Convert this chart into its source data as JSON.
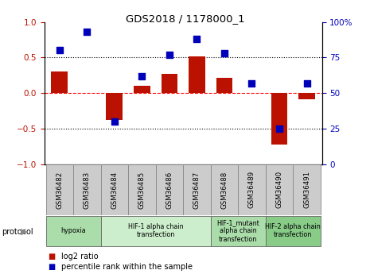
{
  "title": "GDS2018 / 1178000_1",
  "samples": [
    "GSM36482",
    "GSM36483",
    "GSM36484",
    "GSM36485",
    "GSM36486",
    "GSM36487",
    "GSM36488",
    "GSM36489",
    "GSM36490",
    "GSM36491"
  ],
  "log2_ratio": [
    0.3,
    0.0,
    -0.38,
    0.1,
    0.27,
    0.52,
    0.22,
    0.0,
    -0.72,
    -0.09
  ],
  "percentile_rank": [
    80,
    93,
    30,
    62,
    77,
    88,
    78,
    57,
    25,
    57
  ],
  "ylim_left": [
    -1,
    1
  ],
  "ylim_right": [
    0,
    100
  ],
  "yticks_left": [
    -1,
    -0.5,
    0,
    0.5,
    1
  ],
  "yticks_right": [
    0,
    25,
    50,
    75,
    100
  ],
  "hlines_dotted": [
    0.5,
    -0.5
  ],
  "hline_dashed": 0,
  "bar_color": "#bb1100",
  "dot_color": "#0000bb",
  "protocol_groups": [
    {
      "label": "hypoxia",
      "start": 0,
      "end": 1,
      "color": "#aaddaa"
    },
    {
      "label": "HIF-1 alpha chain\ntransfection",
      "start": 2,
      "end": 5,
      "color": "#cceecc"
    },
    {
      "label": "HIF-1_mutant\nalpha chain\ntransfection",
      "start": 6,
      "end": 7,
      "color": "#aaddaa"
    },
    {
      "label": "HIF-2 alpha chain\ntransfection",
      "start": 8,
      "end": 9,
      "color": "#88cc88"
    }
  ],
  "legend_items": [
    {
      "label": "log2 ratio",
      "color": "#bb1100"
    },
    {
      "label": "percentile rank within the sample",
      "color": "#0000bb"
    }
  ],
  "bar_width": 0.6,
  "dot_size": 30,
  "label_box_color": "#cccccc",
  "label_box_edge": "#888888"
}
